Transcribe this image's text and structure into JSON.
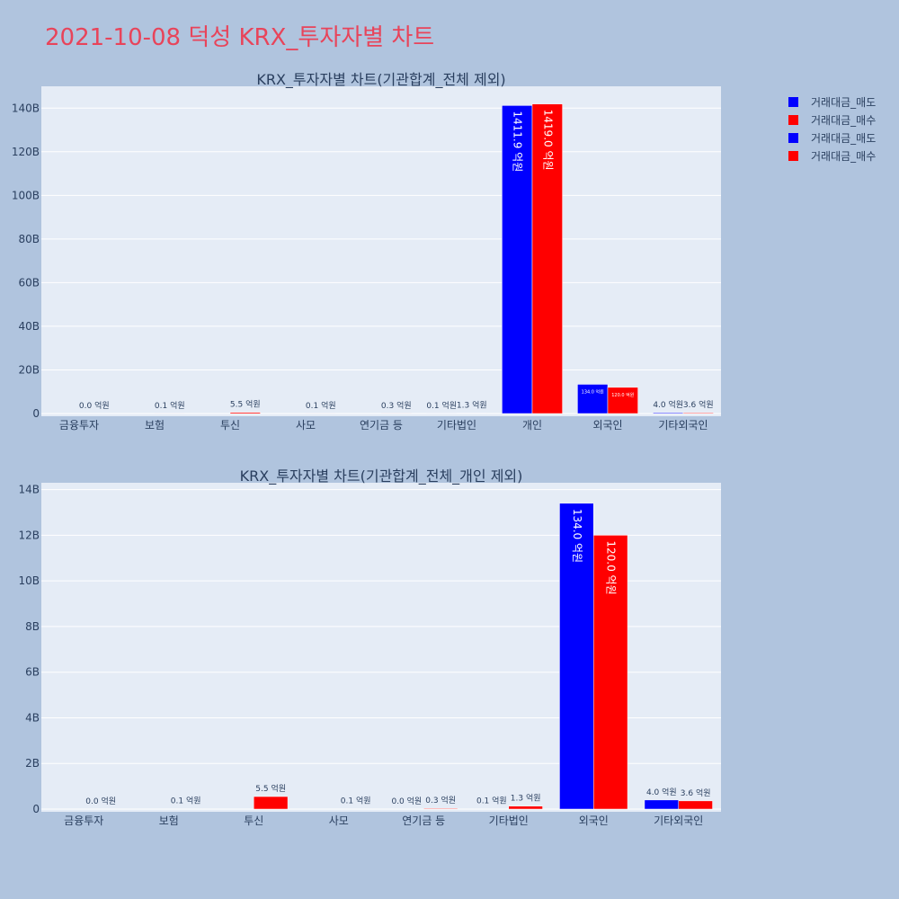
{
  "title": "2021-10-08 덕성 KRX_투자자별 차트",
  "colors": {
    "background": "#b0c4de",
    "plot_bg": "#e5ecf6",
    "title": "#e8445a",
    "text": "#2a3f5f",
    "sell": "#0000ff",
    "buy": "#ff0000"
  },
  "legend": {
    "position": "top-right",
    "items": [
      {
        "label": "거래대금_매도",
        "color": "#0000ff"
      },
      {
        "label": "거래대금_매수",
        "color": "#ff0000"
      },
      {
        "label": "거래대금_매도",
        "color": "#0000ff"
      },
      {
        "label": "거래대금_매수",
        "color": "#ff0000"
      }
    ]
  },
  "chart_data": [
    {
      "type": "bar",
      "title": "KRX_투자자별 차트(기관합계_전체 제외)",
      "categories": [
        "금융투자",
        "보험",
        "투신",
        "사모",
        "연기금 등",
        "기타법인",
        "개인",
        "외국인",
        "기타외국인"
      ],
      "series": [
        {
          "name": "거래대금_매도",
          "color": "#0000ff",
          "values": [
            0,
            0,
            0,
            0,
            0,
            0.01,
            141.19,
            13.4,
            0.4
          ],
          "labels": [
            "",
            "",
            "",
            "",
            "",
            "0.1 억원",
            "1411.9 억원",
            "134.0 억원",
            "4.0 억원"
          ]
        },
        {
          "name": "거래대금_매수",
          "color": "#ff0000",
          "values": [
            0,
            0.01,
            0.55,
            0.01,
            0.03,
            0.13,
            141.9,
            12.0,
            0.36
          ],
          "labels": [
            "0.0 억원",
            "0.1 억원",
            "5.5 억원",
            "0.1 억원",
            "0.3 억원",
            "1.3 억원",
            "1419.0 억원",
            "120.0 억원",
            "3.6 억원"
          ]
        }
      ],
      "yunit": "B",
      "ylim": [
        0,
        150
      ],
      "yticks": [
        0,
        20,
        40,
        60,
        80,
        100,
        120,
        140
      ],
      "ytick_labels": [
        "0",
        "20B",
        "40B",
        "60B",
        "80B",
        "100B",
        "120B",
        "140B"
      ],
      "grid": true
    },
    {
      "type": "bar",
      "title": "KRX_투자자별 차트(기관합계_전체_개인 제외)",
      "categories": [
        "금융투자",
        "보험",
        "투신",
        "사모",
        "연기금 등",
        "기타법인",
        "외국인",
        "기타외국인"
      ],
      "series": [
        {
          "name": "거래대금_매도",
          "color": "#0000ff",
          "values": [
            0,
            0,
            0,
            0,
            0,
            0.01,
            13.4,
            0.4
          ],
          "labels": [
            "",
            "",
            "",
            "",
            "0.0 억원",
            "0.1 억원",
            "134.0 억원",
            "4.0 억원"
          ]
        },
        {
          "name": "거래대금_매수",
          "color": "#ff0000",
          "values": [
            0,
            0.01,
            0.55,
            0.01,
            0.03,
            0.13,
            12.0,
            0.36
          ],
          "labels": [
            "0.0 억원",
            "0.1 억원",
            "5.5 억원",
            "0.1 억원",
            "0.3 억원",
            "1.3 억원",
            "120.0 억원",
            "3.6 억원"
          ]
        }
      ],
      "yunit": "B",
      "ylim": [
        0,
        14.3
      ],
      "yticks": [
        0,
        2,
        4,
        6,
        8,
        10,
        12,
        14
      ],
      "ytick_labels": [
        "0",
        "2B",
        "4B",
        "6B",
        "8B",
        "10B",
        "12B",
        "14B"
      ],
      "grid": true
    }
  ]
}
